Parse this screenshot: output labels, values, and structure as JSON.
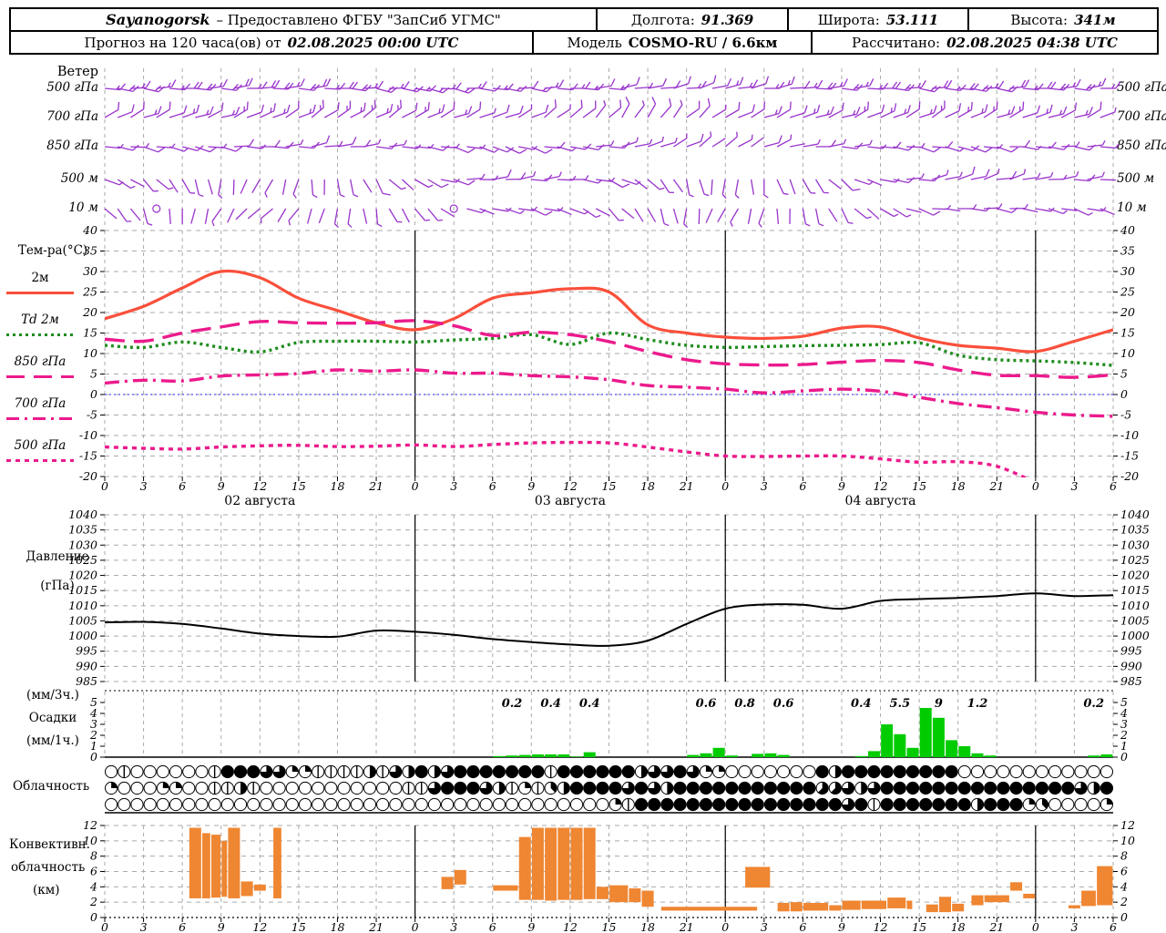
{
  "header": {
    "row1": {
      "station": "Sayanogorsk",
      "provider": "– Предоставлено ФГБУ \"ЗапСиб УГМС\"",
      "lon_label": "Долгота:",
      "lon": "91.369",
      "lat_label": "Широта:",
      "lat": "53.111",
      "alt_label": "Высота:",
      "alt": "341м"
    },
    "row2": {
      "forecast_label": "Прогноз на 120 часа(ов) от",
      "forecast_time": "02.08.2025 00:00 UTC",
      "model_label": "Модель",
      "model": "COSMO-RU / 6.6км",
      "calc_label": "Рассчитано:",
      "calc_time": "02.08.2025 04:38 UTC"
    }
  },
  "colors": {
    "wind_barbs": "#9933cc",
    "t2m": "#fa4f3b",
    "dewpoint": "#1e8c1e",
    "magenta_levels": "#ec1a8c",
    "zero_line": "#5050ff",
    "pressure": "#000000",
    "precip": "#00cc00",
    "conv_cloud": "#ef8632",
    "grid": "#aaaaaa",
    "text": "#000000"
  },
  "x_axis": {
    "hours_total": 78,
    "tick_step": 3,
    "hour_labels": [
      "0",
      "3",
      "6",
      "9",
      "12",
      "15",
      "18",
      "21",
      "0",
      "3",
      "6",
      "9",
      "12",
      "15",
      "18",
      "21",
      "0",
      "3",
      "6",
      "9",
      "12",
      "15",
      "18",
      "21",
      "0",
      "3",
      "6"
    ],
    "day_labels": [
      {
        "label": "02 августа",
        "center_hour": 12
      },
      {
        "label": "03 августа",
        "center_hour": 36
      },
      {
        "label": "04 августа",
        "center_hour": 60
      }
    ],
    "day_boundaries": [
      24,
      48,
      72
    ]
  },
  "wind_panel": {
    "title": "Ветер",
    "levels": [
      {
        "label": "500 гПа",
        "ctrl_angles": [
          5,
          0,
          -5,
          0,
          10,
          5,
          0,
          -10,
          -15,
          -5,
          0,
          5,
          0,
          -5
        ],
        "ctrl_speeds": [
          18,
          20,
          22,
          20,
          18,
          15,
          15,
          12,
          15,
          18,
          20,
          22,
          20,
          18
        ],
        "calm_hours": []
      },
      {
        "label": "700 гПа",
        "ctrl_angles": [
          -30,
          -20,
          -25,
          -35,
          -30,
          -20,
          -40,
          -60,
          -30,
          -20,
          -25,
          -30,
          -20,
          -25
        ],
        "ctrl_speeds": [
          12,
          15,
          15,
          18,
          15,
          12,
          10,
          10,
          12,
          15,
          15,
          18,
          15,
          12
        ],
        "calm_hours": []
      },
      {
        "label": "850 гПа",
        "ctrl_angles": [
          5,
          15,
          0,
          -10,
          5,
          20,
          10,
          -20,
          -40,
          -10,
          5,
          15,
          5,
          0
        ],
        "ctrl_speeds": [
          8,
          10,
          12,
          10,
          8,
          10,
          12,
          8,
          6,
          8,
          10,
          12,
          10,
          8
        ],
        "calm_hours": []
      },
      {
        "label": "500 м",
        "ctrl_angles": [
          20,
          60,
          120,
          80,
          30,
          -10,
          0,
          40,
          100,
          60,
          10,
          -20,
          -10,
          0
        ],
        "ctrl_speeds": [
          6,
          5,
          4,
          6,
          8,
          10,
          8,
          6,
          5,
          6,
          8,
          10,
          8,
          6
        ],
        "calm_hours": []
      },
      {
        "label": "10 м",
        "ctrl_angles": [
          40,
          90,
          140,
          100,
          50,
          10,
          20,
          60,
          120,
          80,
          30,
          0,
          10,
          20
        ],
        "ctrl_speeds": [
          4,
          2,
          3,
          5,
          6,
          8,
          6,
          4,
          3,
          5,
          6,
          8,
          6,
          5
        ],
        "calm_hours": [
          4,
          27
        ]
      }
    ]
  },
  "temperature_panel": {
    "title": "Тем-ра(°C)",
    "legend": [
      {
        "label": "2м",
        "style": "solid"
      },
      {
        "label": "Td  2м",
        "style": "dotted"
      },
      {
        "label": "850 гПа",
        "style": "longdash"
      },
      {
        "label": "700 гПа",
        "style": "dashdot"
      },
      {
        "label": "500 гПа",
        "style": "shortdash"
      }
    ]
  },
  "pressure_panel": {
    "title": "Давление",
    "unit": "(гПа)"
  },
  "precip_panel": {
    "unit_top": "(мм/3ч.)",
    "title": "Осадки",
    "unit_bottom": "(мм/1ч.)"
  },
  "cloud_panel": {
    "title": "Облачность"
  },
  "conv_panel": {
    "title_line1": "Конвективн.",
    "title_line2": "облачность",
    "title_line3": "(км)"
  },
  "chart_data": [
    {
      "id": "temperature",
      "type": "line",
      "title": "Тем-ра(°C)",
      "ylim": [
        -20,
        40
      ],
      "ytick_step": 5,
      "x_step_hours": 3,
      "zero_line": 0,
      "series": [
        {
          "name": "2м",
          "color_key": "t2m",
          "style": "solid",
          "values": [
            18.5,
            21.5,
            26,
            30,
            28.5,
            23.5,
            20.5,
            17.5,
            15.8,
            18.5,
            23.5,
            24.8,
            25.8,
            25,
            17,
            15,
            14,
            13.7,
            14.2,
            16.2,
            16.5,
            13.8,
            12,
            11.3,
            10.5,
            13,
            15.8
          ]
        },
        {
          "name": "Td  2м",
          "color_key": "dewpoint",
          "style": "dotted",
          "values": [
            12,
            11.5,
            12.8,
            11.5,
            10.4,
            12.7,
            13,
            13,
            12.8,
            13.3,
            13.7,
            14.6,
            12.2,
            15,
            13.4,
            12,
            11.5,
            11.7,
            11.9,
            12,
            12.2,
            12.6,
            9.6,
            8.5,
            8.2,
            7.8,
            7.1
          ]
        },
        {
          "name": "850 гПа",
          "color_key": "magenta_levels",
          "style": "longdash",
          "values": [
            13.5,
            13,
            15,
            16.5,
            17.8,
            17.5,
            17.4,
            17.5,
            18,
            16.8,
            14.4,
            15.2,
            14.6,
            12.9,
            10.5,
            8.5,
            7.5,
            7.2,
            7.3,
            7.9,
            8.3,
            7.8,
            6,
            4.7,
            4.6,
            4.2,
            4.8
          ]
        },
        {
          "name": "700 гПа",
          "color_key": "magenta_levels",
          "style": "dashdot",
          "values": [
            2.8,
            3.5,
            3.3,
            4.5,
            4.8,
            5.1,
            6,
            5.7,
            6,
            5.2,
            5.2,
            4.6,
            4.3,
            3.6,
            2.2,
            1.8,
            1.3,
            0.4,
            0.9,
            1.3,
            0.8,
            -0.7,
            -2.2,
            -3.2,
            -4.3,
            -5,
            -5.3
          ]
        },
        {
          "name": "500 гПа",
          "color_key": "magenta_levels",
          "style": "shortdash",
          "values": [
            -12.8,
            -13.1,
            -13.3,
            -12.8,
            -12.5,
            -12.4,
            -12.7,
            -12.6,
            -12.3,
            -12.7,
            -12.2,
            -11.8,
            -11.7,
            -11.8,
            -12.8,
            -14,
            -15,
            -15.1,
            -15,
            -15,
            -15.7,
            -16.5,
            -16.4,
            -17.5,
            -21.5,
            null,
            null
          ]
        }
      ]
    },
    {
      "id": "pressure",
      "type": "line",
      "title": "Давление (гПа)",
      "ylim": [
        985,
        1040
      ],
      "ytick_step": 5,
      "x_step_hours": 3,
      "series": [
        {
          "name": "Давление",
          "color_key": "pressure",
          "style": "solid",
          "values": [
            1004.5,
            1004.7,
            1004,
            1002.5,
            1000.8,
            1000,
            999.8,
            1001.8,
            1001.4,
            1000.4,
            999,
            998,
            997.2,
            996.8,
            998.5,
            1004,
            1009,
            1010.4,
            1010.3,
            1009,
            1011.6,
            1012.2,
            1012.6,
            1013.2,
            1014.1,
            1013.2,
            1013.5
          ]
        }
      ]
    },
    {
      "id": "precip",
      "type": "bar",
      "title": "Осадки (мм/1ч.) и суммы (мм/3ч.)",
      "ylim": [
        0,
        5
      ],
      "ytick_step": 1,
      "bars_1h": [
        [
          30,
          0.1
        ],
        [
          31,
          0.15
        ],
        [
          32,
          0.2
        ],
        [
          33,
          0.25
        ],
        [
          34,
          0.25
        ],
        [
          35,
          0.25
        ],
        [
          36,
          0.05
        ],
        [
          37,
          0.45
        ],
        [
          45,
          0.2
        ],
        [
          46,
          0.35
        ],
        [
          47,
          0.85
        ],
        [
          48,
          0.15
        ],
        [
          50,
          0.3
        ],
        [
          51,
          0.35
        ],
        [
          52,
          0.2
        ],
        [
          58,
          0.1
        ],
        [
          59,
          0.55
        ],
        [
          60,
          3.0
        ],
        [
          61,
          2.1
        ],
        [
          62,
          0.85
        ],
        [
          63,
          4.5
        ],
        [
          64,
          3.6
        ],
        [
          65,
          1.55
        ],
        [
          66,
          1.0
        ],
        [
          67,
          0.35
        ],
        [
          68,
          0.15
        ],
        [
          76,
          0.15
        ],
        [
          77,
          0.25
        ]
      ],
      "labels_3h": [
        [
          31.5,
          "0.2"
        ],
        [
          34.5,
          "0.4"
        ],
        [
          37.5,
          "0.4"
        ],
        [
          46.5,
          "0.6"
        ],
        [
          49.5,
          "0.8"
        ],
        [
          52.5,
          "0.6"
        ],
        [
          58.5,
          "0.4"
        ],
        [
          61.5,
          "5.5"
        ],
        [
          64.5,
          "9"
        ],
        [
          67.5,
          "1.2"
        ],
        [
          76.5,
          "0.2"
        ]
      ]
    },
    {
      "id": "cloud",
      "type": "symbols",
      "title": "Облачность (октанты, 3 яруса)",
      "rows_oktas": [
        [
          0,
          1,
          0,
          0,
          0,
          0,
          0,
          0,
          1,
          8,
          8,
          8,
          6,
          6,
          2,
          2,
          1,
          1,
          1,
          1,
          4,
          1,
          6,
          4,
          8,
          4,
          6,
          8,
          8,
          8,
          8,
          8,
          8,
          8,
          1,
          8,
          8,
          8,
          8,
          8,
          8,
          4,
          6,
          6,
          8,
          6,
          2,
          2,
          0,
          0,
          0,
          0,
          0,
          0,
          0,
          8,
          4,
          8,
          8,
          8,
          8,
          8,
          8,
          8,
          8,
          8,
          0,
          0,
          0,
          0,
          0,
          0,
          0,
          0,
          0,
          0,
          0,
          0
        ],
        [
          2,
          0,
          0,
          0,
          2,
          2,
          0,
          0,
          1,
          1,
          4,
          1,
          0,
          0,
          0,
          0,
          0,
          0,
          0,
          0,
          0,
          0,
          0,
          1,
          1,
          6,
          8,
          8,
          8,
          6,
          4,
          1,
          2,
          1,
          3,
          4,
          8,
          8,
          8,
          8,
          6,
          8,
          6,
          4,
          8,
          8,
          8,
          8,
          8,
          8,
          8,
          8,
          8,
          8,
          8,
          5,
          5,
          6,
          4,
          6,
          8,
          8,
          8,
          8,
          8,
          8,
          8,
          8,
          8,
          8,
          8,
          8,
          8,
          8,
          8,
          6,
          4,
          8
        ],
        [
          0,
          0,
          0,
          0,
          0,
          0,
          0,
          0,
          0,
          0,
          0,
          0,
          0,
          0,
          0,
          0,
          0,
          0,
          0,
          0,
          0,
          0,
          0,
          0,
          0,
          0,
          0,
          0,
          0,
          0,
          0,
          0,
          0,
          0,
          0,
          0,
          0,
          0,
          0,
          2,
          1,
          8,
          8,
          8,
          8,
          8,
          8,
          8,
          8,
          8,
          8,
          8,
          8,
          8,
          8,
          8,
          8,
          6,
          8,
          1,
          8,
          8,
          8,
          8,
          8,
          8,
          8,
          4,
          8,
          8,
          8,
          2,
          3,
          0,
          0,
          0,
          0,
          2
        ]
      ]
    },
    {
      "id": "conv",
      "type": "range-bar",
      "title": "Конвективная облачность (км)",
      "ylim": [
        0,
        12
      ],
      "ytick_step": 2,
      "segments": [
        [
          6.5,
          7.5,
          2.5,
          11.7
        ],
        [
          7.5,
          8.2,
          2.5,
          11
        ],
        [
          8.2,
          9,
          2.6,
          10.8
        ],
        [
          9,
          9.5,
          2.7,
          10
        ],
        [
          9.5,
          10.5,
          2.5,
          11.7
        ],
        [
          10.5,
          11.5,
          2.8,
          4.7
        ],
        [
          11.5,
          12.5,
          3.5,
          4.3
        ],
        [
          13,
          13.7,
          2.5,
          11.7
        ],
        [
          26,
          27,
          3.7,
          5.3
        ],
        [
          27,
          28,
          4.3,
          6.2
        ],
        [
          30,
          32,
          3.5,
          4.2
        ],
        [
          32,
          33,
          2.3,
          10.5
        ],
        [
          33,
          34,
          2.3,
          11.7
        ],
        [
          34,
          35,
          2.2,
          11.7
        ],
        [
          35,
          36,
          2.3,
          11.7
        ],
        [
          36,
          37,
          2.3,
          11.7
        ],
        [
          37,
          38,
          2.4,
          11.7
        ],
        [
          38,
          39,
          2.4,
          4.0
        ],
        [
          39,
          40.5,
          2.0,
          4.2
        ],
        [
          40.5,
          41.5,
          2.0,
          3.8
        ],
        [
          41.5,
          42.5,
          1.4,
          3.5
        ],
        [
          43,
          50.5,
          0.9,
          1.4
        ],
        [
          49.5,
          51.5,
          3.9,
          6.6
        ],
        [
          52,
          53,
          0.8,
          1.9
        ],
        [
          53,
          54,
          0.8,
          2.0
        ],
        [
          54,
          56,
          0.9,
          1.9
        ],
        [
          56,
          57,
          0.9,
          1.6
        ],
        [
          57,
          58.5,
          1.0,
          2.2
        ],
        [
          58.5,
          60.5,
          1.1,
          2.2
        ],
        [
          60.5,
          62,
          1.2,
          2.6
        ],
        [
          62,
          62.5,
          1.1,
          2.2
        ],
        [
          63.5,
          64.5,
          0.7,
          1.7
        ],
        [
          64.5,
          65.5,
          0.7,
          2.7
        ],
        [
          65.5,
          66.5,
          0.8,
          1.8
        ],
        [
          67,
          68,
          1.6,
          2.9
        ],
        [
          68,
          70,
          2.0,
          2.9
        ],
        [
          70,
          71,
          3.5,
          4.6
        ],
        [
          71,
          72,
          2.5,
          3.1
        ],
        [
          74.5,
          75.5,
          1.2,
          1.6
        ],
        [
          75.5,
          76.7,
          1.5,
          3.5
        ],
        [
          76.7,
          78,
          1.6,
          6.7
        ]
      ]
    }
  ]
}
